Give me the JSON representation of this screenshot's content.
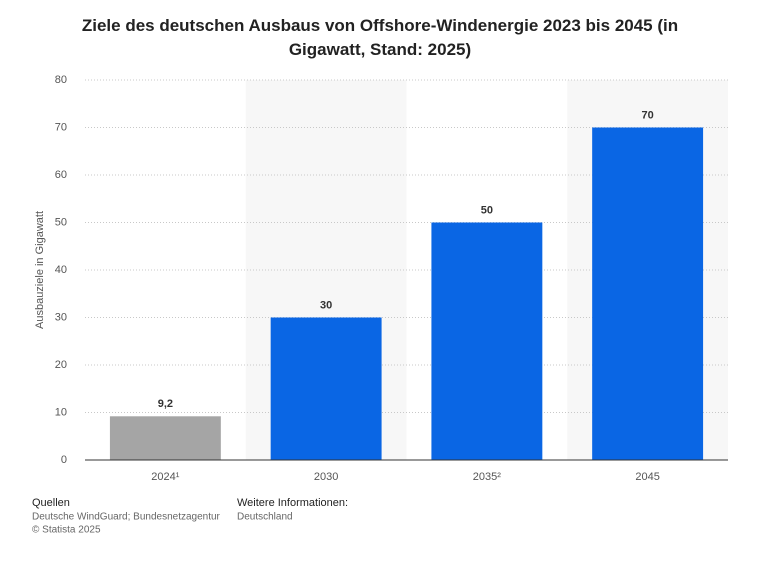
{
  "chart_data": {
    "type": "bar",
    "title": "Ziele des deutschen Ausbaus von Offshore-Windenergie 2023 bis 2045 (in Gigawatt, Stand: 2025)",
    "y_label": "Ausbauziele in Gigawatt",
    "categories": [
      "2024¹",
      "2030",
      "2035²",
      "2045"
    ],
    "values": [
      9.2,
      30,
      50,
      70
    ],
    "value_labels": [
      "9,2",
      "30",
      "50",
      "70"
    ],
    "colors": [
      "#a5a5a5",
      "#0a66e4",
      "#0a66e4",
      "#0a66e4"
    ],
    "ylim": [
      0,
      80
    ],
    "yticks": [
      0,
      10,
      20,
      30,
      40,
      50,
      60,
      70,
      80
    ],
    "grid": true
  },
  "footer": {
    "sources_title": "Quellen",
    "sources": "Deutsche WindGuard; Bundesnetzagentur",
    "copyright": "© Statista 2025",
    "info_title": "Weitere Informationen:",
    "info": "Deutschland"
  }
}
